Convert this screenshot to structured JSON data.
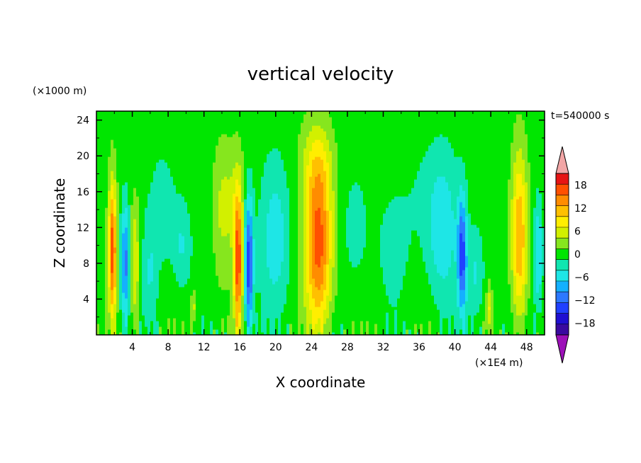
{
  "chart_data": {
    "type": "heatmap",
    "title": "vertical velocity",
    "xlabel": "X coordinate",
    "ylabel": "Z coordinate",
    "x_unit": "(×1E4 m)",
    "y_unit": "(×1000 m)",
    "time_label": "t=540000 s",
    "xlim": [
      0,
      50
    ],
    "ylim": [
      0,
      25
    ],
    "x_ticks": [
      4,
      8,
      12,
      16,
      20,
      24,
      28,
      32,
      36,
      40,
      44,
      48
    ],
    "y_ticks": [
      4,
      8,
      12,
      16,
      20,
      24
    ],
    "x_tick_labels": [
      "4",
      "8",
      "12",
      "16",
      "20",
      "24",
      "28",
      "32",
      "36",
      "40",
      "44",
      "48"
    ],
    "y_tick_labels": [
      "4",
      "8",
      "12",
      "16",
      "20",
      "24"
    ],
    "colorbar": {
      "levels": [
        -21,
        -18,
        -15,
        -12,
        -9,
        -6,
        -3,
        0,
        3,
        6,
        9,
        12,
        15,
        18,
        21
      ],
      "tick_values": [
        18,
        12,
        6,
        0,
        -6,
        -12,
        -18
      ],
      "tick_labels": [
        "18",
        "12",
        "6",
        "0",
        "−6",
        "−12",
        "−18"
      ],
      "colors": [
        "#3a0aa0",
        "#1f0fd2",
        "#2040ff",
        "#2c78ff",
        "#14b0ff",
        "#1ee6e6",
        "#10e6b0",
        "#00e600",
        "#86e61e",
        "#d2f000",
        "#ffee00",
        "#ffc000",
        "#ff8c00",
        "#ff5000",
        "#e61414"
      ],
      "under_color": "#9c10b8",
      "over_color": "#f2a6a6"
    },
    "features": [
      {
        "x": 1.8,
        "z": 9.5,
        "w": 0.45,
        "h": 7.5,
        "amp": 18
      },
      {
        "x": 3.2,
        "z": 8.0,
        "w": 0.5,
        "h": 6.5,
        "amp": -12
      },
      {
        "x": 4.3,
        "z": 8.0,
        "w": 0.5,
        "h": 7.0,
        "amp": 8
      },
      {
        "x": 6.0,
        "z": 7.0,
        "w": 0.8,
        "h": 6.0,
        "amp": -4
      },
      {
        "x": 7.5,
        "z": 14.0,
        "w": 1.3,
        "h": 6.0,
        "amp": -4
      },
      {
        "x": 9.5,
        "z": 10.0,
        "w": 1.0,
        "h": 5.0,
        "amp": -5
      },
      {
        "x": 10.8,
        "z": 3.0,
        "w": 0.3,
        "h": 2.0,
        "amp": 6
      },
      {
        "x": 13.8,
        "z": 13.0,
        "w": 1.0,
        "h": 9.0,
        "amp": 3
      },
      {
        "x": 15.8,
        "z": 8.0,
        "w": 0.5,
        "h": 8.0,
        "amp": 18
      },
      {
        "x": 17.0,
        "z": 8.0,
        "w": 0.5,
        "h": 7.5,
        "amp": -16
      },
      {
        "x": 15.0,
        "z": 15.0,
        "w": 1.5,
        "h": 6.0,
        "amp": 4
      },
      {
        "x": 20.0,
        "z": 11.0,
        "w": 1.6,
        "h": 8.0,
        "amp": -6
      },
      {
        "x": 24.8,
        "z": 10.0,
        "w": 1.5,
        "h": 9.5,
        "amp": 18
      },
      {
        "x": 24.6,
        "z": 19.0,
        "w": 1.8,
        "h": 5.0,
        "amp": 5
      },
      {
        "x": 29.0,
        "z": 12.0,
        "w": 1.5,
        "h": 7.0,
        "amp": -3
      },
      {
        "x": 33.0,
        "z": 10.0,
        "w": 2.0,
        "h": 6.0,
        "amp": -2
      },
      {
        "x": 38.5,
        "z": 12.0,
        "w": 1.7,
        "h": 8.0,
        "amp": -7
      },
      {
        "x": 40.8,
        "z": 9.0,
        "w": 0.5,
        "h": 6.5,
        "amp": -14
      },
      {
        "x": 42.3,
        "z": 7.0,
        "w": 1.0,
        "h": 5.0,
        "amp": -5
      },
      {
        "x": 43.8,
        "z": 3.0,
        "w": 0.3,
        "h": 2.5,
        "amp": 7
      },
      {
        "x": 47.2,
        "z": 11.0,
        "w": 0.9,
        "h": 9.5,
        "amp": 14
      },
      {
        "x": 49.3,
        "z": 9.0,
        "w": 0.5,
        "h": 6.0,
        "amp": -8
      },
      {
        "x": 36.0,
        "z": 16.0,
        "w": 2.0,
        "h": 8.0,
        "amp": -1.5
      }
    ]
  }
}
